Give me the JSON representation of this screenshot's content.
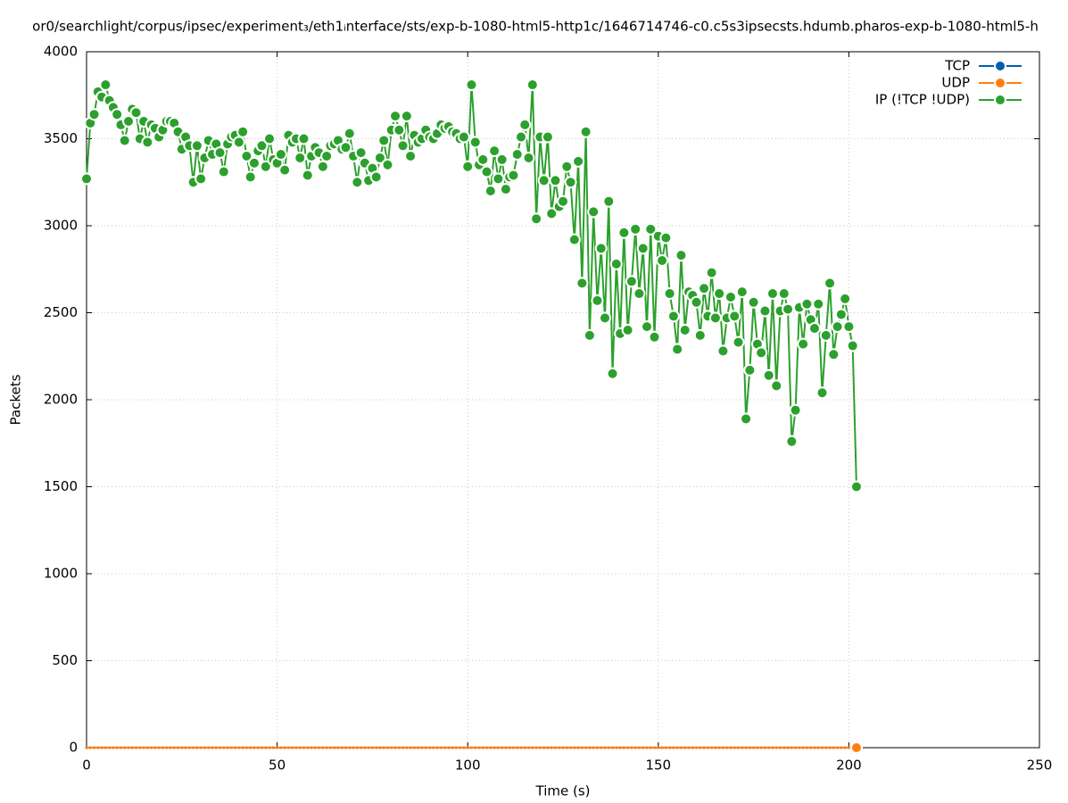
{
  "chart_data": {
    "type": "line",
    "title": "or0/searchlight/corpus/ipsec/experiment₃/eth1ᵢnterface/sts/exp-b-1080-html5-http1c/1646714746-c0.c5s3ipsecsts.hdumb.pharos-exp-b-1080-html5-h",
    "x_label": "Time (s)",
    "y_label": "Packets",
    "xlim": [
      0,
      250
    ],
    "xticks": [
      0,
      50,
      100,
      150,
      200,
      250
    ],
    "ylim": [
      0,
      4000
    ],
    "yticks": [
      0,
      500,
      1000,
      1500,
      2000,
      2500,
      3000,
      3500,
      4000
    ],
    "grid": true,
    "legend": "top right",
    "x": [
      0,
      1,
      2,
      3,
      4,
      5,
      6,
      7,
      8,
      9,
      10,
      11,
      12,
      13,
      14,
      15,
      16,
      17,
      18,
      19,
      20,
      21,
      22,
      23,
      24,
      25,
      26,
      27,
      28,
      29,
      30,
      31,
      32,
      33,
      34,
      35,
      36,
      37,
      38,
      39,
      40,
      41,
      42,
      43,
      44,
      45,
      46,
      47,
      48,
      49,
      50,
      51,
      52,
      53,
      54,
      55,
      56,
      57,
      58,
      59,
      60,
      61,
      62,
      63,
      64,
      65,
      66,
      67,
      68,
      69,
      70,
      71,
      72,
      73,
      74,
      75,
      76,
      77,
      78,
      79,
      80,
      81,
      82,
      83,
      84,
      85,
      86,
      87,
      88,
      89,
      90,
      91,
      92,
      93,
      94,
      95,
      96,
      97,
      98,
      99,
      100,
      101,
      102,
      103,
      104,
      105,
      106,
      107,
      108,
      109,
      110,
      111,
      112,
      113,
      114,
      115,
      116,
      117,
      118,
      119,
      120,
      121,
      122,
      123,
      124,
      125,
      126,
      127,
      128,
      129,
      130,
      131,
      132,
      133,
      134,
      135,
      136,
      137,
      138,
      139,
      140,
      141,
      142,
      143,
      144,
      145,
      146,
      147,
      148,
      149,
      150,
      151,
      152,
      153,
      154,
      155,
      156,
      157,
      158,
      159,
      160,
      161,
      162,
      163,
      164,
      165,
      166,
      167,
      168,
      169,
      170,
      171,
      172,
      173,
      174,
      175,
      176,
      177,
      178,
      179,
      180,
      181,
      182,
      183,
      184,
      185,
      186,
      187,
      188,
      189,
      190,
      191,
      192,
      193,
      194,
      195,
      196,
      197,
      198,
      199,
      200,
      201,
      202
    ],
    "series": [
      {
        "name": "TCP",
        "color": "#0060ad",
        "values": [
          0,
          0,
          0,
          0,
          0,
          0,
          0,
          0,
          0,
          0,
          0,
          0,
          0,
          0,
          0,
          0,
          0,
          0,
          0,
          0,
          0,
          0,
          0,
          0,
          0,
          0,
          0,
          0,
          0,
          0,
          0,
          0,
          0,
          0,
          0,
          0,
          0,
          0,
          0,
          0,
          0,
          0,
          0,
          0,
          0,
          0,
          0,
          0,
          0,
          0,
          0,
          0,
          0,
          0,
          0,
          0,
          0,
          0,
          0,
          0,
          0,
          0,
          0,
          0,
          0,
          0,
          0,
          0,
          0,
          0,
          0,
          0,
          0,
          0,
          0,
          0,
          0,
          0,
          0,
          0,
          0,
          0,
          0,
          0,
          0,
          0,
          0,
          0,
          0,
          0,
          0,
          0,
          0,
          0,
          0,
          0,
          0,
          0,
          0,
          0,
          0,
          0,
          0,
          0,
          0,
          0,
          0,
          0,
          0,
          0,
          0,
          0,
          0,
          0,
          0,
          0,
          0,
          0,
          0,
          0,
          0,
          0,
          0,
          0,
          0,
          0,
          0,
          0,
          0,
          0,
          0,
          0,
          0,
          0,
          0,
          0,
          0,
          0,
          0,
          0,
          0,
          0,
          0,
          0,
          0,
          0,
          0,
          0,
          0,
          0,
          0,
          0,
          0,
          0,
          0,
          0,
          0,
          0,
          0,
          0,
          0,
          0,
          0,
          0,
          0,
          0,
          0,
          0,
          0,
          0,
          0,
          0,
          0,
          0,
          0,
          0,
          0,
          0,
          0,
          0,
          0,
          0,
          0,
          0,
          0,
          0,
          0,
          0,
          0,
          0,
          0,
          0,
          0,
          0,
          0,
          0,
          0,
          0,
          0,
          0,
          0,
          0,
          0
        ]
      },
      {
        "name": "UDP",
        "color": "#ff7f0e",
        "values": [
          0,
          0,
          0,
          0,
          0,
          0,
          0,
          0,
          0,
          0,
          0,
          0,
          0,
          0,
          0,
          0,
          0,
          0,
          0,
          0,
          0,
          0,
          0,
          0,
          0,
          0,
          0,
          0,
          0,
          0,
          0,
          0,
          0,
          0,
          0,
          0,
          0,
          0,
          0,
          0,
          0,
          0,
          0,
          0,
          0,
          0,
          0,
          0,
          0,
          0,
          0,
          0,
          0,
          0,
          0,
          0,
          0,
          0,
          0,
          0,
          0,
          0,
          0,
          0,
          0,
          0,
          0,
          0,
          0,
          0,
          0,
          0,
          0,
          0,
          0,
          0,
          0,
          0,
          0,
          0,
          0,
          0,
          0,
          0,
          0,
          0,
          0,
          0,
          0,
          0,
          0,
          0,
          0,
          0,
          0,
          0,
          0,
          0,
          0,
          0,
          0,
          0,
          0,
          0,
          0,
          0,
          0,
          0,
          0,
          0,
          0,
          0,
          0,
          0,
          0,
          0,
          0,
          0,
          0,
          0,
          0,
          0,
          0,
          0,
          0,
          0,
          0,
          0,
          0,
          0,
          0,
          0,
          0,
          0,
          0,
          0,
          0,
          0,
          0,
          0,
          0,
          0,
          0,
          0,
          0,
          0,
          0,
          0,
          0,
          0,
          0,
          0,
          0,
          0,
          0,
          0,
          0,
          0,
          0,
          0,
          0,
          0,
          0,
          0,
          0,
          0,
          0,
          0,
          0,
          0,
          0,
          0,
          0,
          0,
          0,
          0,
          0,
          0,
          0,
          0,
          0,
          0,
          0,
          0,
          0,
          0,
          0,
          0,
          0,
          0,
          0,
          0,
          0,
          0,
          0,
          0,
          0,
          0,
          0,
          0,
          0,
          0,
          0
        ]
      },
      {
        "name": "IP (!TCP  !UDP)",
        "color": "#2ca02c",
        "values": [
          3270,
          3590,
          3640,
          3770,
          3740,
          3810,
          3720,
          3680,
          3640,
          3580,
          3490,
          3600,
          3670,
          3650,
          3500,
          3600,
          3480,
          3580,
          3560,
          3510,
          3550,
          3600,
          3600,
          3590,
          3540,
          3440,
          3510,
          3460,
          3250,
          3460,
          3270,
          3390,
          3490,
          3410,
          3470,
          3420,
          3310,
          3470,
          3510,
          3520,
          3480,
          3540,
          3400,
          3280,
          3360,
          3430,
          3460,
          3340,
          3500,
          3380,
          3360,
          3410,
          3320,
          3520,
          3480,
          3500,
          3390,
          3500,
          3290,
          3400,
          3450,
          3420,
          3340,
          3400,
          3460,
          3470,
          3490,
          3440,
          3450,
          3530,
          3400,
          3250,
          3420,
          3360,
          3260,
          3330,
          3280,
          3390,
          3490,
          3350,
          3550,
          3630,
          3550,
          3460,
          3630,
          3400,
          3520,
          3480,
          3500,
          3550,
          3510,
          3500,
          3530,
          3580,
          3560,
          3570,
          3540,
          3530,
          3500,
          3510,
          3340,
          3810,
          3480,
          3350,
          3380,
          3310,
          3200,
          3430,
          3270,
          3380,
          3210,
          3280,
          3290,
          3410,
          3510,
          3580,
          3390,
          3810,
          3040,
          3510,
          3260,
          3510,
          3070,
          3260,
          3110,
          3140,
          3340,
          3250,
          2920,
          3370,
          2670,
          3540,
          2370,
          3080,
          2570,
          2870,
          2470,
          3140,
          2150,
          2780,
          2380,
          2960,
          2400,
          2680,
          2980,
          2610,
          2870,
          2420,
          2980,
          2360,
          2940,
          2800,
          2930,
          2610,
          2480,
          2290,
          2830,
          2400,
          2620,
          2600,
          2560,
          2370,
          2640,
          2480,
          2730,
          2470,
          2610,
          2280,
          2470,
          2590,
          2480,
          2330,
          2620,
          1890,
          2170,
          2560,
          2320,
          2270,
          2510,
          2140,
          2610,
          2080,
          2510,
          2610,
          2520,
          1760,
          1940,
          2530,
          2320,
          2550,
          2460,
          2410,
          2550,
          2040,
          2370,
          2670,
          2260,
          2420,
          2490,
          2580,
          2420,
          2310,
          1500
        ]
      }
    ]
  }
}
